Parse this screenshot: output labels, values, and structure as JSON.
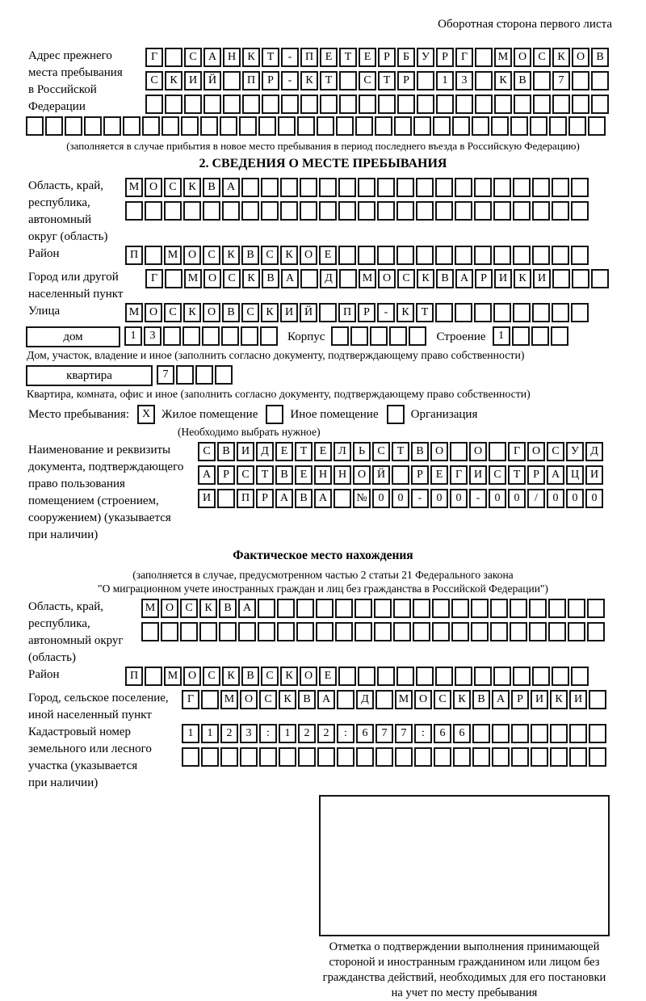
{
  "doc": {
    "back_title": "Оборотная сторона первого листа"
  },
  "prev_address": {
    "label": "Адрес прежнего\nместа пребывания\nв Российской\nФедерации",
    "row1": {
      "n": 24,
      "text": "Г САНКТ-ПЕТЕРБУРГ МОСКОВ"
    },
    "row2": {
      "n": 24,
      "text": "СКИЙ ПР-КТ СТР 13 КВ 7"
    },
    "row3": {
      "n": 24,
      "text": ""
    },
    "row4": {
      "n": 30,
      "text": ""
    },
    "note": "(заполняется в случае прибытия в новое место пребывания в период последнего въезда в Российскую Федерацию)"
  },
  "section2": {
    "title": "2. СВЕДЕНИЯ О МЕСТЕ ПРЕБЫВАНИЯ",
    "region": {
      "label": "Область, край,\nреспублика,\nавтономный\nокруг (область)",
      "row1": {
        "n": 24,
        "text": "МОСКВА"
      },
      "row2": {
        "n": 24,
        "text": ""
      }
    },
    "district": {
      "label": "Район",
      "row": {
        "n": 24,
        "text": "П МОСКВСКОЕ"
      }
    },
    "city": {
      "label": "Город или другой\nнаселенный пункт",
      "row": {
        "n": 24,
        "text": "Г МОСКВА Д МОСКВАРИКИ"
      }
    },
    "street": {
      "label": "Улица",
      "row": {
        "n": 24,
        "text": "МОСКОВСКИЙ ПР-КТ"
      }
    },
    "house": {
      "box_label": "дом",
      "row": {
        "n": 8,
        "text": "13"
      },
      "korpus_label": "Корпус",
      "korpus_row": {
        "n": 5,
        "text": ""
      },
      "stroenie_label": "Строение",
      "stroenie_row": {
        "n": 4,
        "text": "1"
      },
      "caption": "Дом, участок, владение и иное (заполнить согласно документу, подтверждающему право собственности)"
    },
    "apartment": {
      "box_label": "квартира",
      "row": {
        "n": 4,
        "text": "7"
      },
      "caption": "Квартира, комната, офис и иное (заполнить согласно документу, подтверждающему право собственности)"
    },
    "stay_type": {
      "label": "Место пребывания:",
      "options": [
        {
          "label": "Жилое помещение",
          "mark": "X"
        },
        {
          "label": "Иное помещение",
          "mark": ""
        },
        {
          "label": "Организация",
          "mark": ""
        }
      ],
      "note": "(Необходимо выбрать нужное)"
    },
    "doc_basis": {
      "label": "Наименование и реквизиты\nдокумента, подтверждающего\nправо пользования\nпомещением (строением,\nсооружением) (указывается\nпри наличии)",
      "row1": {
        "n": 21,
        "text": "СВИДЕТЕЛЬСТВО О ГОСУД"
      },
      "row2": {
        "n": 21,
        "text": "АРСТВЕННОЙ РЕГИСТРАЦИ"
      },
      "row3": {
        "n": 21,
        "text": "И ПРАВА №00-00-00/000"
      }
    }
  },
  "actual_location": {
    "title": "Фактическое место нахождения",
    "note": "(заполняется в случае, предусмотренном частью 2 статьи 21 Федерального закона\n\"О миграционном учете иностранных граждан и лиц без гражданства в Российской Федерации\")",
    "region": {
      "label": "Область, край,\nреспублика,\nавтономный округ\n(область)",
      "row1": {
        "n": 24,
        "text": "МОСКВА"
      },
      "row2": {
        "n": 24,
        "text": ""
      }
    },
    "district": {
      "label": "Район",
      "row": {
        "n": 24,
        "text": "П МОСКВСКОЕ"
      }
    },
    "city": {
      "label": "Город, сельское поселение,\nиной населенный пункт",
      "row": {
        "n": 22,
        "text": "Г МОСКВА Д МОСКВАРИКИ"
      }
    },
    "cadastre": {
      "label": "Кадастровый номер\nземельного или лесного\nучастка (указывается\nпри наличии)",
      "row1": {
        "n": 22,
        "text": "1123:122:677:66"
      },
      "row2": {
        "n": 22,
        "text": ""
      }
    },
    "stamp_caption": "Отметка о подтверждении выполнения принимающей\nстороной и иностранным гражданином или лицом без\nгражданства действий, необходимых для его постановки\nна учет по месту пребывания"
  }
}
